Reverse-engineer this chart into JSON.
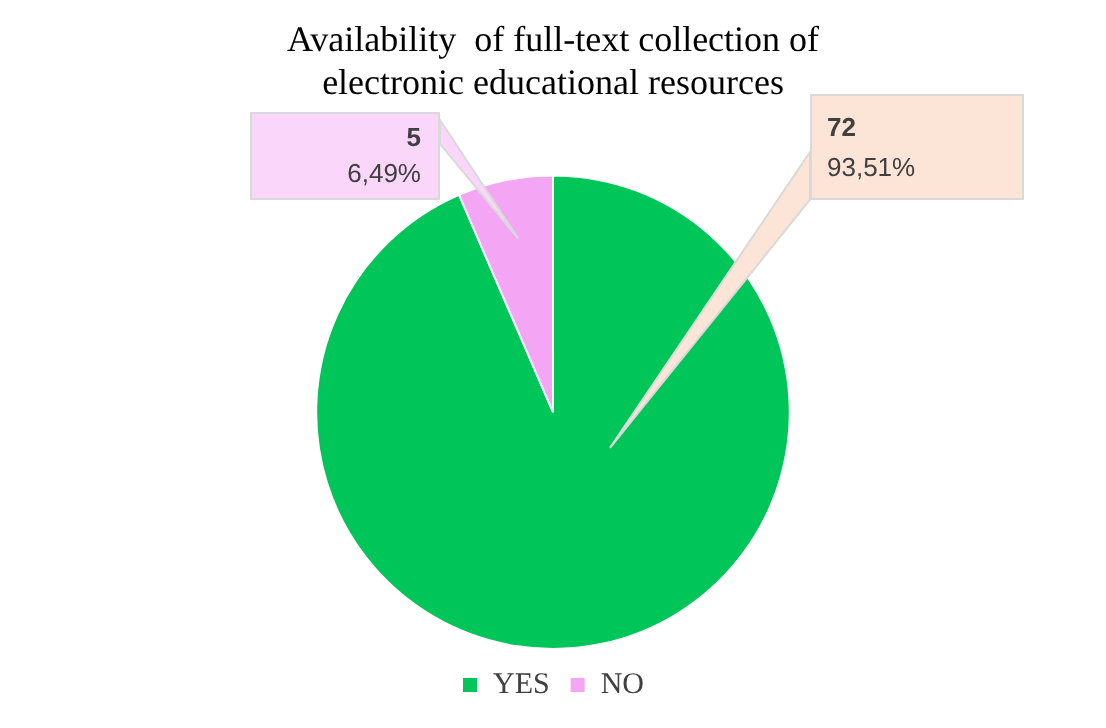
{
  "chart_data": {
    "type": "pie",
    "title": "Availability  of full-text collection of electronic educational resources",
    "categories": [
      "YES",
      "NO"
    ],
    "values": [
      72,
      5
    ],
    "colors": [
      "#00c65a",
      "#f4a6f4"
    ],
    "value_labels": [
      "72\n93,51%",
      "5\n6,49%"
    ],
    "legend": "bottom"
  }
}
